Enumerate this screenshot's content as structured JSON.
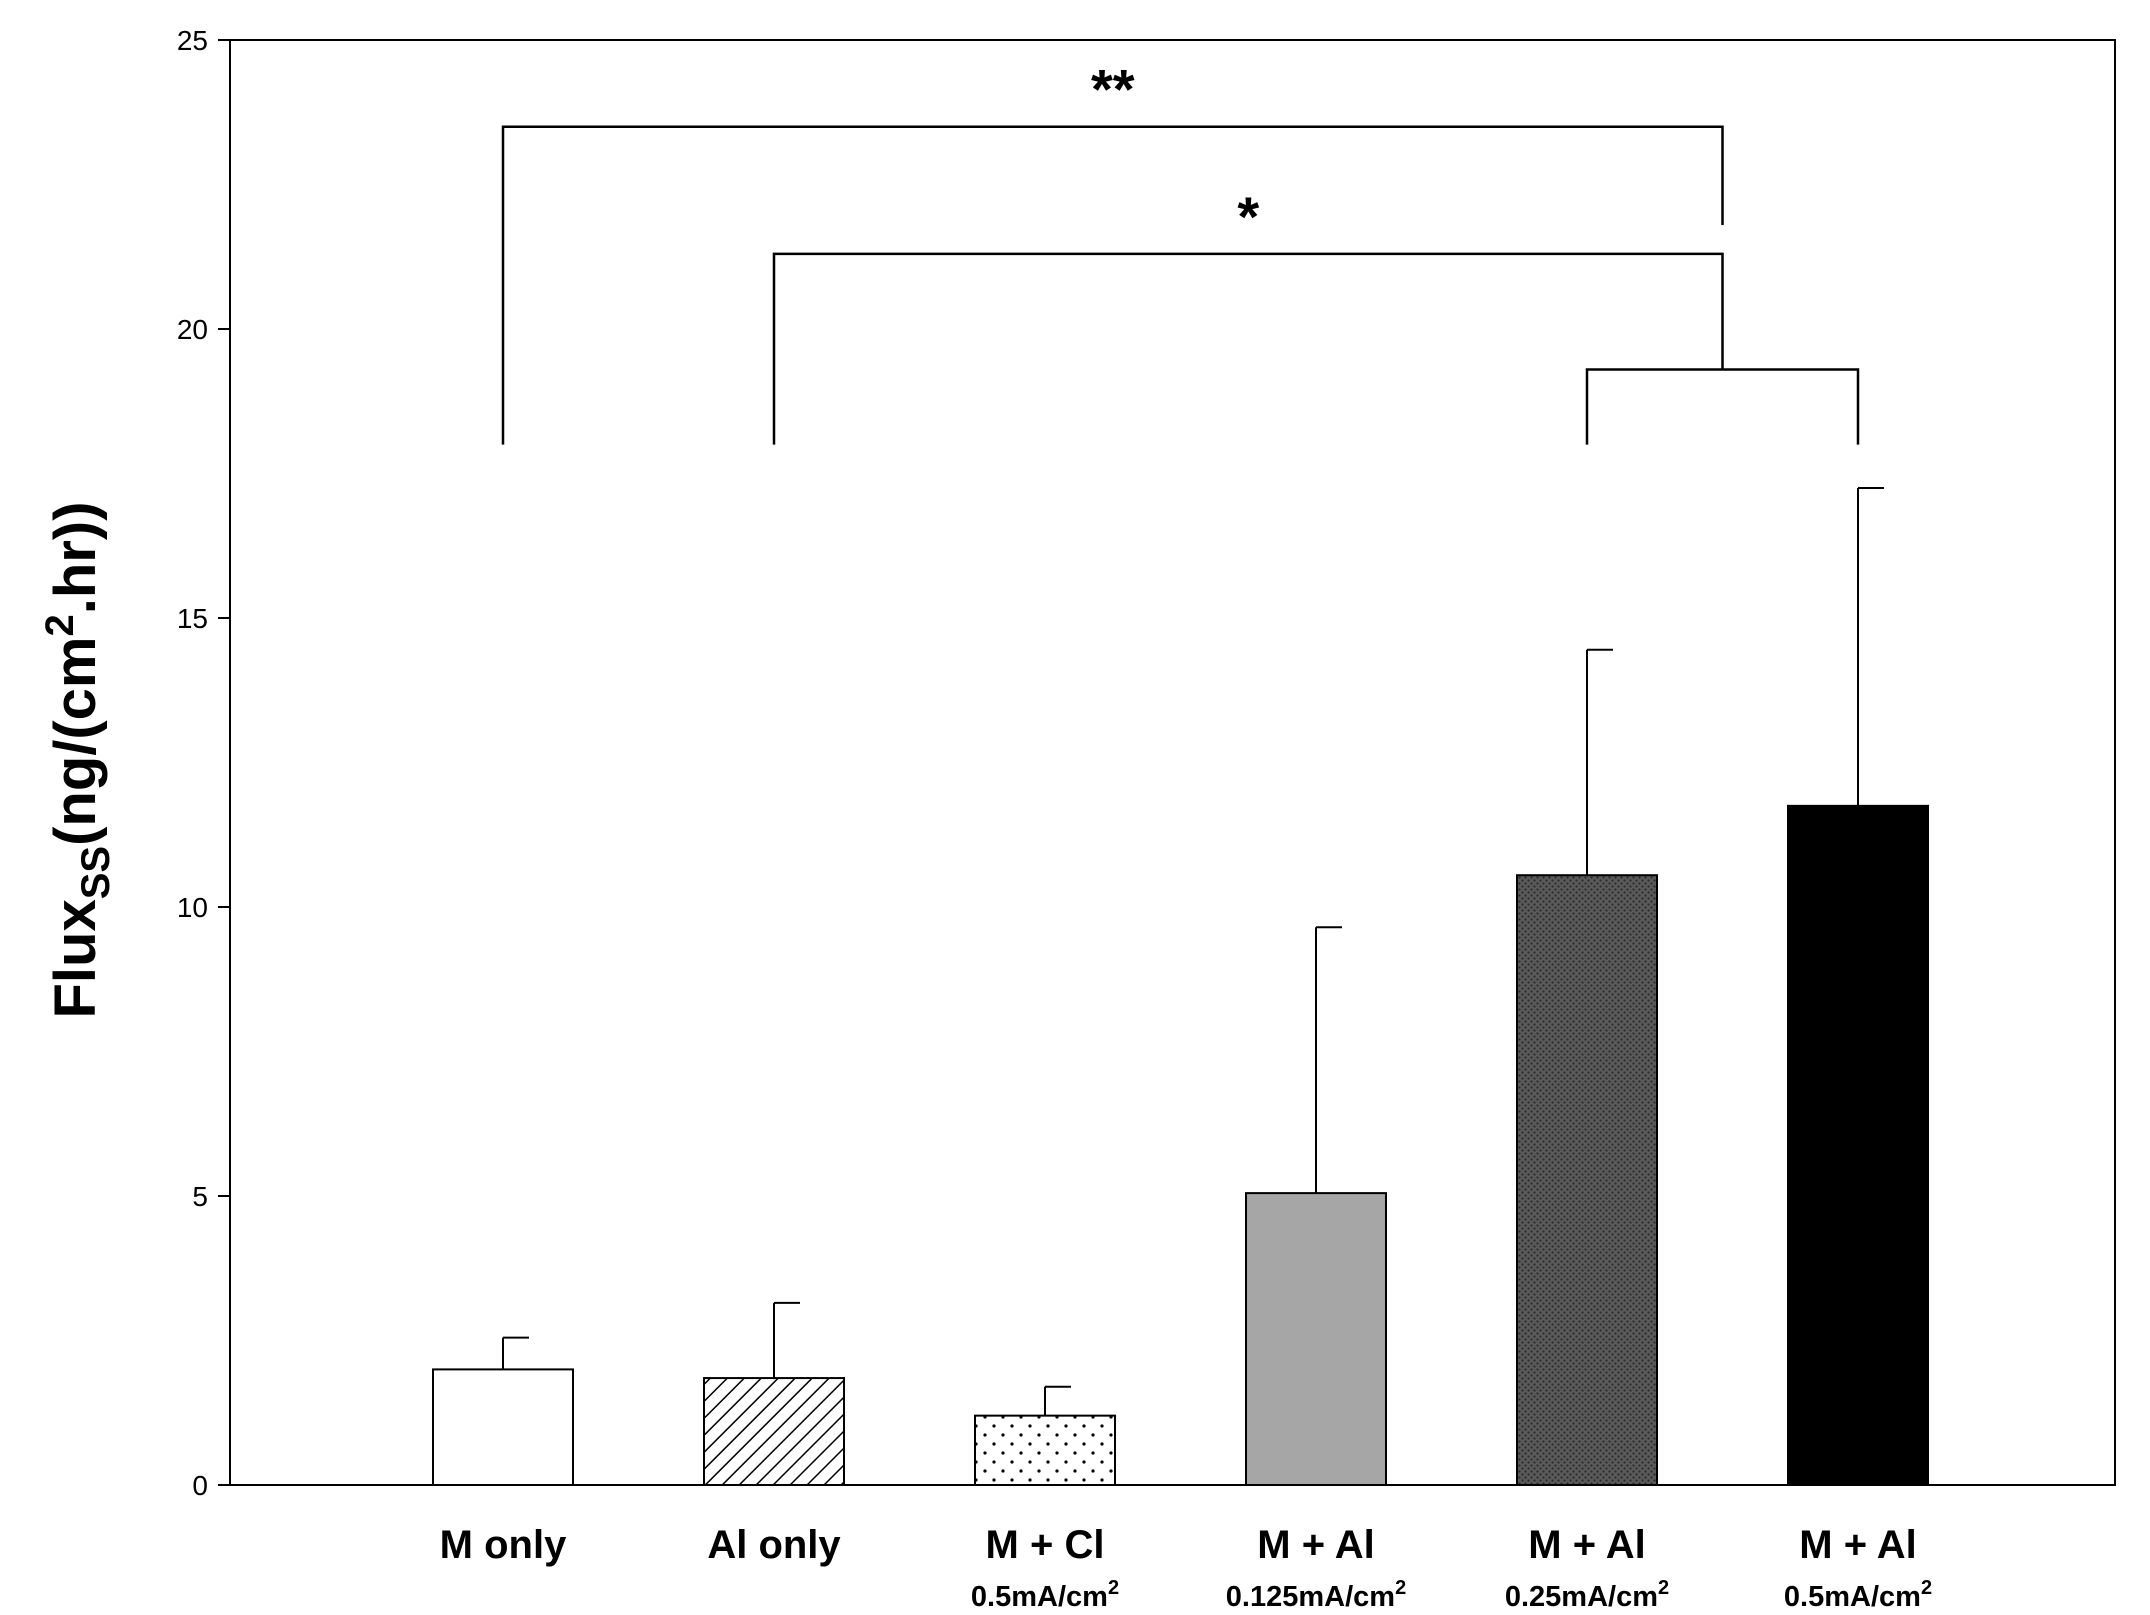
{
  "chart_data": {
    "type": "bar",
    "title": "",
    "xlabel": "",
    "ylabel": {
      "main": "Flux",
      "subscript": "SS",
      "unit_open": "(ng/(cm",
      "unit_sup": "2",
      "unit_close": ".hr))"
    },
    "ylim": [
      0,
      25
    ],
    "yticks": [
      "0",
      "5",
      "10",
      "15",
      "20",
      "25"
    ],
    "grid": false,
    "categories": [
      {
        "label": "M only",
        "sub": "",
        "sub_sup": ""
      },
      {
        "label": "Al only",
        "sub": "",
        "sub_sup": ""
      },
      {
        "label": "M + Cl",
        "sub": "0.5mA/cm",
        "sub_sup": "2"
      },
      {
        "label": "M + Al",
        "sub": "0.125mA/cm",
        "sub_sup": "2"
      },
      {
        "label": "M + Al",
        "sub": "0.25mA/cm",
        "sub_sup": "2"
      },
      {
        "label": "M + Al",
        "sub": "0.5mA/cm",
        "sub_sup": "2"
      }
    ],
    "values": [
      2.0,
      1.85,
      1.2,
      5.05,
      10.55,
      11.75
    ],
    "errors": [
      0.55,
      1.3,
      0.5,
      4.6,
      3.9,
      5.5
    ],
    "fills": [
      "white",
      "diagonal-hatch",
      "dots",
      "#a6a6a6",
      "dense-dots",
      "#000000"
    ],
    "significance": [
      {
        "label": "**",
        "from": 0,
        "to": "group",
        "tip_y": 18,
        "bar_y": 23.5
      },
      {
        "label": "*",
        "from": 1,
        "to": "group",
        "tip_y": 18,
        "bar_y": 21.3
      }
    ],
    "group_bracket": {
      "members": [
        4,
        5
      ],
      "tip_y": 18,
      "bar_y": 19.3
    }
  }
}
